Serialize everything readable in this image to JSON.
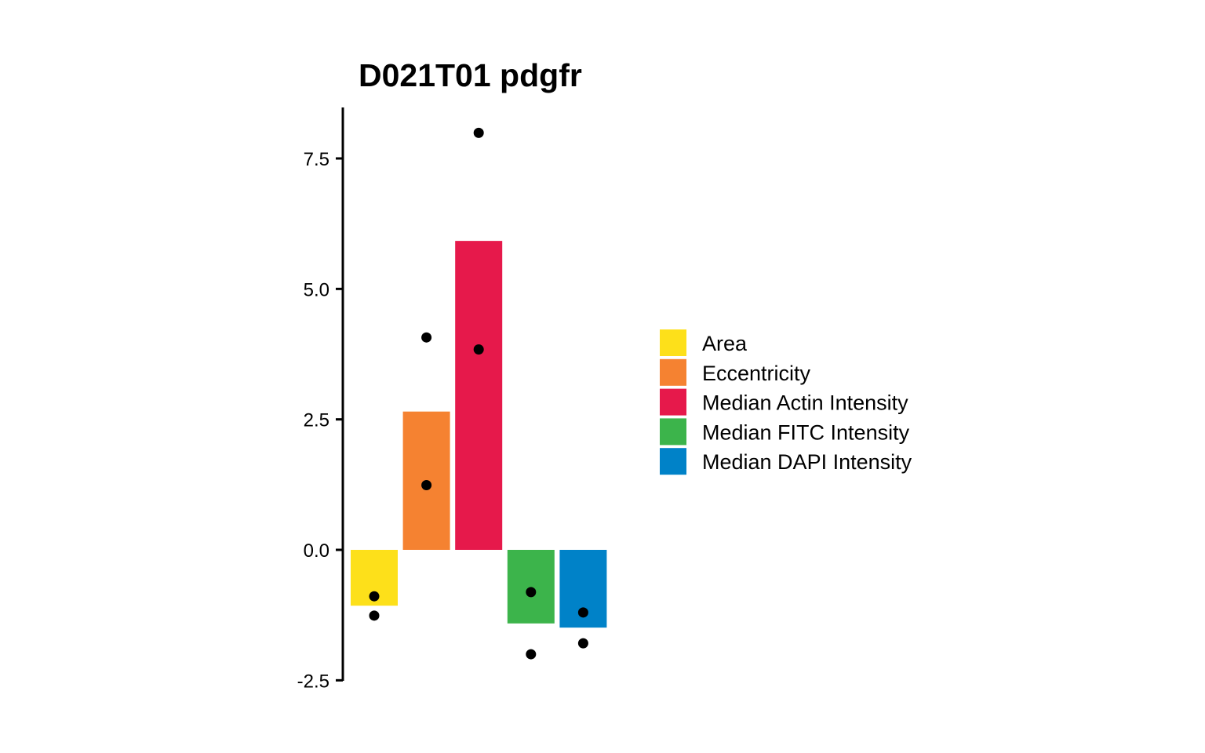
{
  "chart_data": {
    "type": "bar",
    "title": "D021T01 pdgfr",
    "xlabel": "",
    "ylabel": "",
    "ylim": [
      -2.5,
      8.5
    ],
    "y_ticks": [
      -2.5,
      0.0,
      2.5,
      5.0,
      7.5
    ],
    "y_tick_labels": [
      "-2.5",
      "0.0",
      "2.5",
      "5.0",
      "7.5"
    ],
    "grid": false,
    "legend_position": "right",
    "categories": [
      "Area",
      "Eccentricity",
      "Median Actin Intensity",
      "Median FITC Intensity",
      "Median DAPI Intensity"
    ],
    "values": [
      -1.07,
      2.65,
      5.92,
      -1.41,
      -1.49
    ],
    "colors": [
      "#FDE01A",
      "#F58231",
      "#E6194B",
      "#3CB44B",
      "#0082C8"
    ],
    "points": [
      [
        -0.89,
        -1.26
      ],
      [
        4.07,
        1.24
      ],
      [
        7.99,
        3.84
      ],
      [
        -0.81,
        -2.0
      ],
      [
        -1.2,
        -1.79
      ]
    ]
  }
}
